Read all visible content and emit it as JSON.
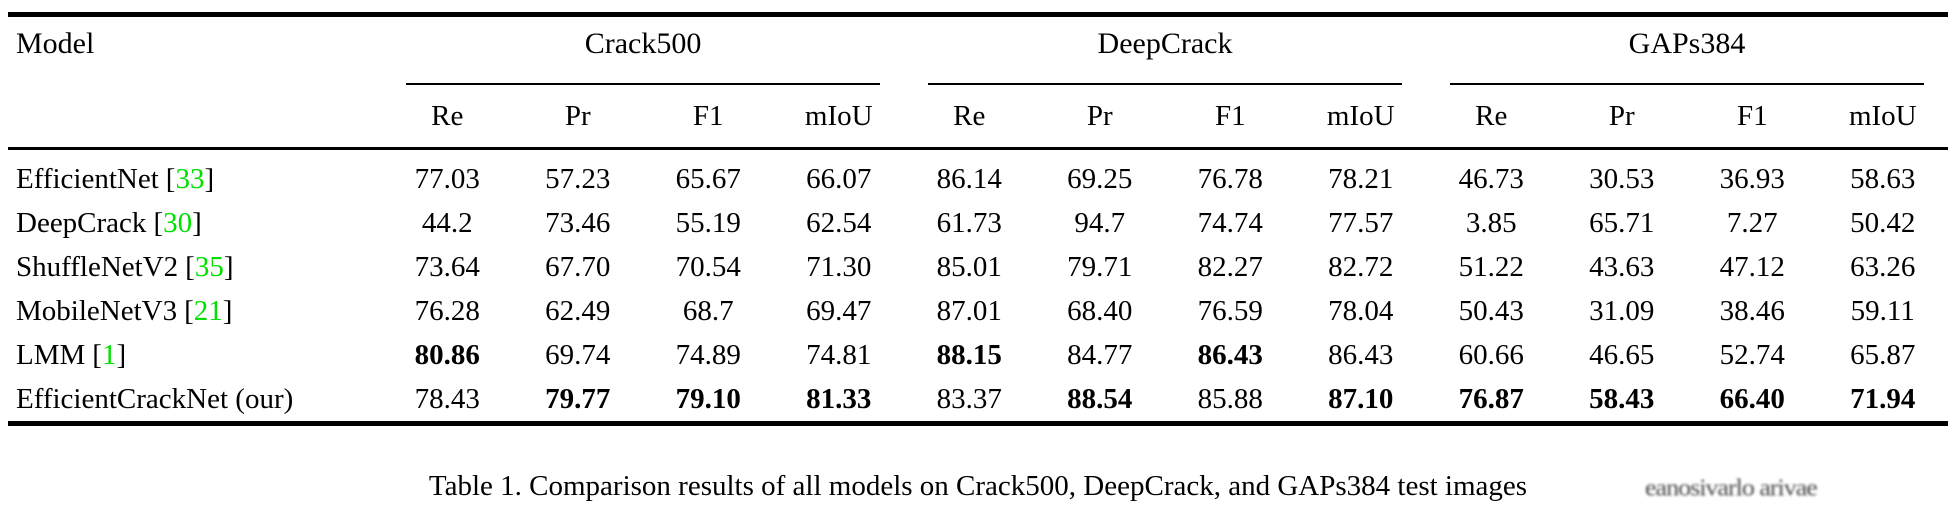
{
  "colors": {
    "citation_green": "#00e000",
    "text": "#000000",
    "background": "#ffffff"
  },
  "table": {
    "model_column_header": "Model",
    "groups": [
      {
        "label": "Crack500",
        "metrics": [
          "Re",
          "Pr",
          "F1",
          "mIoU"
        ]
      },
      {
        "label": "DeepCrack",
        "metrics": [
          "Re",
          "Pr",
          "F1",
          "mIoU"
        ]
      },
      {
        "label": "GAPs384",
        "metrics": [
          "Re",
          "Pr",
          "F1",
          "mIoU"
        ]
      }
    ],
    "rows": [
      {
        "model": "EfficientNet",
        "citation": "33",
        "values": [
          "77.03",
          "57.23",
          "65.67",
          "66.07",
          "86.14",
          "69.25",
          "76.78",
          "78.21",
          "46.73",
          "30.53",
          "36.93",
          "58.63"
        ],
        "bold": [
          false,
          false,
          false,
          false,
          false,
          false,
          false,
          false,
          false,
          false,
          false,
          false
        ]
      },
      {
        "model": "DeepCrack",
        "citation": "30",
        "values": [
          "44.2",
          "73.46",
          "55.19",
          "62.54",
          "61.73",
          "94.7",
          "74.74",
          "77.57",
          "3.85",
          "65.71",
          "7.27",
          "50.42"
        ],
        "bold": [
          false,
          false,
          false,
          false,
          false,
          false,
          false,
          false,
          false,
          false,
          false,
          false
        ]
      },
      {
        "model": "ShuffleNetV2",
        "citation": "35",
        "values": [
          "73.64",
          "67.70",
          "70.54",
          "71.30",
          "85.01",
          "79.71",
          "82.27",
          "82.72",
          "51.22",
          "43.63",
          "47.12",
          "63.26"
        ],
        "bold": [
          false,
          false,
          false,
          false,
          false,
          false,
          false,
          false,
          false,
          false,
          false,
          false
        ]
      },
      {
        "model": "MobileNetV3",
        "citation": "21",
        "values": [
          "76.28",
          "62.49",
          "68.7",
          "69.47",
          "87.01",
          "68.40",
          "76.59",
          "78.04",
          "50.43",
          "31.09",
          "38.46",
          "59.11"
        ],
        "bold": [
          false,
          false,
          false,
          false,
          false,
          false,
          false,
          false,
          false,
          false,
          false,
          false
        ]
      },
      {
        "model": "LMM",
        "citation": "1",
        "values": [
          "80.86",
          "69.74",
          "74.89",
          "74.81",
          "88.15",
          "84.77",
          "86.43",
          "86.43",
          "60.66",
          "46.65",
          "52.74",
          "65.87"
        ],
        "bold": [
          true,
          false,
          false,
          false,
          true,
          false,
          true,
          false,
          false,
          false,
          false,
          false
        ]
      },
      {
        "model": "EfficientCrackNet (our)",
        "citation": "",
        "values": [
          "78.43",
          "79.77",
          "79.10",
          "81.33",
          "83.37",
          "88.54",
          "85.88",
          "87.10",
          "76.87",
          "58.43",
          "66.40",
          "71.94"
        ],
        "bold": [
          false,
          true,
          true,
          true,
          false,
          true,
          false,
          true,
          true,
          true,
          true,
          true
        ]
      }
    ]
  },
  "caption": {
    "text": "Table 1. Comparison results of all models on Crack500, DeepCrack, and GAPs384 test images",
    "artifact_text": "eanosivarlo arivae"
  }
}
